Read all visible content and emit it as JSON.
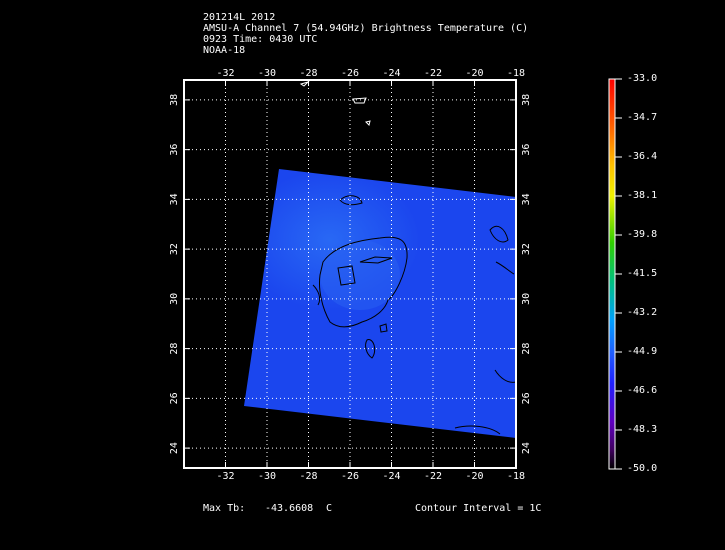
{
  "header": {
    "line1": "201214L 2012",
    "line2": "AMSU-A Channel 7 (54.94GHz) Brightness Temperature (C)",
    "line3": "0923 Time: 0430 UTC",
    "line4": "NOAA-18"
  },
  "map": {
    "lon_ticks": [
      "-32",
      "-30",
      "-28",
      "-26",
      "-24",
      "-22",
      "-20",
      "-18"
    ],
    "lat_ticks": [
      "38",
      "36",
      "34",
      "32",
      "30",
      "28",
      "26",
      "24"
    ],
    "lon_range": [
      -34,
      -18
    ],
    "lat_range": [
      23.2,
      38.8
    ],
    "swath_color": "#1b46ee",
    "contour_color": "#000000"
  },
  "colorbar": {
    "labels": [
      "-33.0",
      "-34.7",
      "-36.4",
      "-38.1",
      "-39.8",
      "-41.5",
      "-43.2",
      "-44.9",
      "-46.6",
      "-48.3",
      "-50.0"
    ]
  },
  "footer": {
    "max_label": "Max Tb:",
    "max_value": "-43.6608",
    "max_unit": "C",
    "contour": "Contour Interval = 1C"
  }
}
